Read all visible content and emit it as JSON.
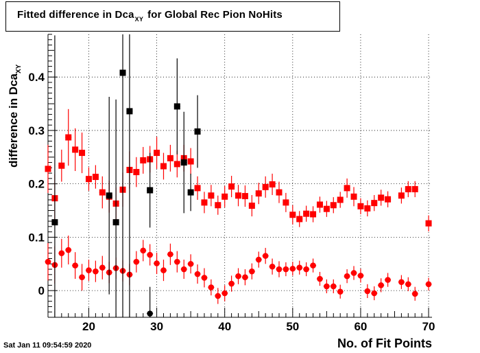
{
  "title": {
    "main": "Fitted difference in Dca",
    "sub": "XY",
    "suffix": "for Global Rec Pion NoHits"
  },
  "timestamp": "Sat Jan 11 09:54:59 2020",
  "colors": {
    "red": "#ff0000",
    "black": "#000000",
    "axis": "#000000"
  },
  "chart_data": {
    "type": "scatter",
    "title": "Fitted difference in Dca_XY for Global Rec Pion NoHits",
    "xlabel": "No. of Fit Points",
    "ylabel": "difference in Dca_XY",
    "ylabel_main": "difference in Dca",
    "ylabel_sub": "XY",
    "xlim": [
      14,
      70.5
    ],
    "ylim": [
      -0.05,
      0.48
    ],
    "xticks": [
      20,
      30,
      40,
      50,
      60,
      70
    ],
    "yticks": [
      0,
      0.1,
      0.2,
      0.3,
      0.4
    ],
    "xtick_labels": [
      "20",
      "30",
      "40",
      "50",
      "60",
      "70"
    ],
    "ytick_labels": [
      "0",
      "0.1",
      "0.2",
      "0.3",
      "0.4"
    ],
    "grid": true,
    "legend": "none",
    "series": [
      {
        "color": "#ff0000",
        "marker": "square",
        "points": [
          {
            "x": 14,
            "y": 0.228,
            "err": 0.045
          },
          {
            "x": 15,
            "y": 0.173,
            "err": 0.045
          },
          {
            "x": 16,
            "y": 0.234,
            "err": 0.03
          },
          {
            "x": 17,
            "y": 0.287,
            "err": 0.053
          },
          {
            "x": 18,
            "y": 0.264,
            "err": 0.04
          },
          {
            "x": 19,
            "y": 0.258,
            "err": 0.038
          },
          {
            "x": 20,
            "y": 0.209,
            "err": 0.022
          },
          {
            "x": 21,
            "y": 0.213,
            "err": 0.022
          },
          {
            "x": 22,
            "y": 0.184,
            "err": 0.03
          },
          {
            "x": 23,
            "y": 0.176,
            "err": 0.03
          },
          {
            "x": 24,
            "y": 0.163,
            "err": 0.03
          },
          {
            "x": 25,
            "y": 0.189,
            "err": 0.032
          },
          {
            "x": 26,
            "y": 0.226,
            "err": 0.035
          },
          {
            "x": 27,
            "y": 0.222,
            "err": 0.028
          },
          {
            "x": 28,
            "y": 0.244,
            "err": 0.025
          },
          {
            "x": 29,
            "y": 0.246,
            "err": 0.025
          },
          {
            "x": 30,
            "y": 0.258,
            "err": 0.03
          },
          {
            "x": 31,
            "y": 0.233,
            "err": 0.025
          },
          {
            "x": 32,
            "y": 0.248,
            "err": 0.025
          },
          {
            "x": 33,
            "y": 0.237,
            "err": 0.025
          },
          {
            "x": 34,
            "y": 0.248,
            "err": 0.025
          },
          {
            "x": 35,
            "y": 0.242,
            "err": 0.025
          },
          {
            "x": 36,
            "y": 0.192,
            "err": 0.022
          },
          {
            "x": 37,
            "y": 0.165,
            "err": 0.02
          },
          {
            "x": 38,
            "y": 0.178,
            "err": 0.02
          },
          {
            "x": 39,
            "y": 0.16,
            "err": 0.018
          },
          {
            "x": 40,
            "y": 0.176,
            "err": 0.02
          },
          {
            "x": 41,
            "y": 0.195,
            "err": 0.02
          },
          {
            "x": 42,
            "y": 0.178,
            "err": 0.02
          },
          {
            "x": 43,
            "y": 0.177,
            "err": 0.02
          },
          {
            "x": 44,
            "y": 0.159,
            "err": 0.02
          },
          {
            "x": 45,
            "y": 0.182,
            "err": 0.02
          },
          {
            "x": 46,
            "y": 0.194,
            "err": 0.02
          },
          {
            "x": 47,
            "y": 0.199,
            "err": 0.02
          },
          {
            "x": 48,
            "y": 0.184,
            "err": 0.02
          },
          {
            "x": 49,
            "y": 0.165,
            "err": 0.018
          },
          {
            "x": 50,
            "y": 0.142,
            "err": 0.018
          },
          {
            "x": 51,
            "y": 0.134,
            "err": 0.015
          },
          {
            "x": 52,
            "y": 0.144,
            "err": 0.015
          },
          {
            "x": 53,
            "y": 0.143,
            "err": 0.015
          },
          {
            "x": 54,
            "y": 0.161,
            "err": 0.015
          },
          {
            "x": 55,
            "y": 0.153,
            "err": 0.015
          },
          {
            "x": 56,
            "y": 0.16,
            "err": 0.015
          },
          {
            "x": 57,
            "y": 0.17,
            "err": 0.015
          },
          {
            "x": 58,
            "y": 0.192,
            "err": 0.018
          },
          {
            "x": 59,
            "y": 0.176,
            "err": 0.018
          },
          {
            "x": 60,
            "y": 0.158,
            "err": 0.015
          },
          {
            "x": 61,
            "y": 0.154,
            "err": 0.015
          },
          {
            "x": 62,
            "y": 0.164,
            "err": 0.015
          },
          {
            "x": 63,
            "y": 0.174,
            "err": 0.015
          },
          {
            "x": 64,
            "y": 0.171,
            "err": 0.015
          },
          {
            "x": 66,
            "y": 0.178,
            "err": 0.015
          },
          {
            "x": 67,
            "y": 0.19,
            "err": 0.015
          },
          {
            "x": 68,
            "y": 0.19,
            "err": 0.015
          },
          {
            "x": 70,
            "y": 0.126,
            "err": 0.015
          }
        ]
      },
      {
        "color": "#ff0000",
        "marker": "circle",
        "points": [
          {
            "x": 14,
            "y": 0.054,
            "err": 0.035
          },
          {
            "x": 15,
            "y": 0.048,
            "err": 0.035
          },
          {
            "x": 16,
            "y": 0.07,
            "err": 0.027
          },
          {
            "x": 17,
            "y": 0.076,
            "err": 0.027
          },
          {
            "x": 18,
            "y": 0.047,
            "err": 0.025
          },
          {
            "x": 19,
            "y": 0.025,
            "err": 0.025
          },
          {
            "x": 20,
            "y": 0.038,
            "err": 0.02
          },
          {
            "x": 21,
            "y": 0.036,
            "err": 0.02
          },
          {
            "x": 22,
            "y": 0.043,
            "err": 0.022
          },
          {
            "x": 23,
            "y": 0.034,
            "err": 0.02
          },
          {
            "x": 24,
            "y": 0.042,
            "err": 0.02
          },
          {
            "x": 25,
            "y": 0.037,
            "err": 0.02
          },
          {
            "x": 26,
            "y": 0.03,
            "err": 0.02
          },
          {
            "x": 27,
            "y": 0.054,
            "err": 0.02
          },
          {
            "x": 28,
            "y": 0.075,
            "err": 0.02
          },
          {
            "x": 29,
            "y": 0.067,
            "err": 0.02
          },
          {
            "x": 30,
            "y": 0.051,
            "err": 0.02
          },
          {
            "x": 31,
            "y": 0.038,
            "err": 0.02
          },
          {
            "x": 32,
            "y": 0.068,
            "err": 0.02
          },
          {
            "x": 33,
            "y": 0.054,
            "err": 0.02
          },
          {
            "x": 34,
            "y": 0.04,
            "err": 0.018
          },
          {
            "x": 35,
            "y": 0.05,
            "err": 0.018
          },
          {
            "x": 36,
            "y": 0.031,
            "err": 0.018
          },
          {
            "x": 37,
            "y": 0.024,
            "err": 0.018
          },
          {
            "x": 38,
            "y": 0.006,
            "err": 0.015
          },
          {
            "x": 39,
            "y": -0.01,
            "err": 0.015
          },
          {
            "x": 40,
            "y": -0.005,
            "err": 0.015
          },
          {
            "x": 41,
            "y": 0.013,
            "err": 0.015
          },
          {
            "x": 42,
            "y": 0.027,
            "err": 0.015
          },
          {
            "x": 43,
            "y": 0.025,
            "err": 0.015
          },
          {
            "x": 44,
            "y": 0.036,
            "err": 0.015
          },
          {
            "x": 45,
            "y": 0.058,
            "err": 0.015
          },
          {
            "x": 46,
            "y": 0.065,
            "err": 0.015
          },
          {
            "x": 47,
            "y": 0.045,
            "err": 0.015
          },
          {
            "x": 48,
            "y": 0.04,
            "err": 0.015
          },
          {
            "x": 49,
            "y": 0.04,
            "err": 0.013
          },
          {
            "x": 50,
            "y": 0.041,
            "err": 0.013
          },
          {
            "x": 51,
            "y": 0.043,
            "err": 0.013
          },
          {
            "x": 52,
            "y": 0.04,
            "err": 0.013
          },
          {
            "x": 53,
            "y": 0.047,
            "err": 0.013
          },
          {
            "x": 54,
            "y": 0.022,
            "err": 0.013
          },
          {
            "x": 55,
            "y": 0.008,
            "err": 0.013
          },
          {
            "x": 56,
            "y": 0.008,
            "err": 0.013
          },
          {
            "x": 57,
            "y": -0.002,
            "err": 0.013
          },
          {
            "x": 58,
            "y": 0.027,
            "err": 0.013
          },
          {
            "x": 59,
            "y": 0.033,
            "err": 0.013
          },
          {
            "x": 60,
            "y": 0.028,
            "err": 0.013
          },
          {
            "x": 61,
            "y": -0.001,
            "err": 0.013
          },
          {
            "x": 62,
            "y": -0.005,
            "err": 0.013
          },
          {
            "x": 63,
            "y": 0.01,
            "err": 0.013
          },
          {
            "x": 64,
            "y": 0.02,
            "err": 0.013
          },
          {
            "x": 66,
            "y": 0.016,
            "err": 0.013
          },
          {
            "x": 67,
            "y": 0.012,
            "err": 0.013
          },
          {
            "x": 68,
            "y": -0.006,
            "err": 0.013
          },
          {
            "x": 70,
            "y": 0.012,
            "err": 0.012
          }
        ]
      },
      {
        "color": "#000000",
        "marker": "square",
        "points": [
          {
            "x": 15,
            "y": 0.128,
            "err": 0.35
          },
          {
            "x": 23,
            "y": 0.178,
            "err": 0.185
          },
          {
            "x": 24,
            "y": 0.128,
            "err": 0.23
          },
          {
            "x": 25,
            "y": 0.408,
            "err": 0.5
          },
          {
            "x": 26,
            "y": 0.336,
            "err": 0.5
          },
          {
            "x": 29,
            "y": 0.188,
            "err": 0.07
          },
          {
            "x": 33,
            "y": 0.345,
            "err": 0.09
          },
          {
            "x": 34,
            "y": 0.24,
            "err": 0.095
          },
          {
            "x": 35,
            "y": 0.184,
            "err": 0.035
          },
          {
            "x": 36,
            "y": 0.298,
            "err": 0.068
          }
        ]
      },
      {
        "color": "#000000",
        "marker": "circle",
        "points": [
          {
            "x": 29,
            "y": -0.043,
            "err": 0.05
          }
        ]
      }
    ]
  }
}
